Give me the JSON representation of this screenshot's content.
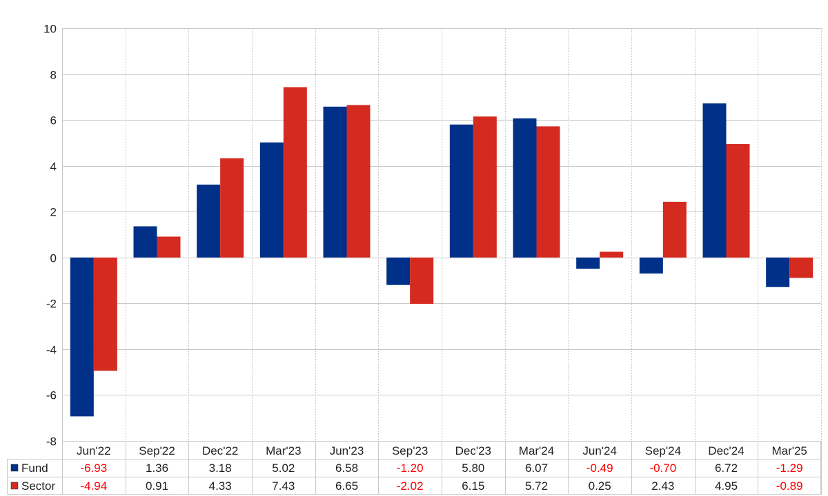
{
  "chart_data": {
    "type": "bar",
    "categories": [
      "Jun'22",
      "Sep'22",
      "Dec'22",
      "Mar'23",
      "Jun'23",
      "Sep'23",
      "Dec'23",
      "Mar'24",
      "Jun'24",
      "Sep'24",
      "Dec'24",
      "Mar'25"
    ],
    "series": [
      {
        "name": "Fund",
        "color": "#003087",
        "values": [
          -6.93,
          1.36,
          3.18,
          5.02,
          6.58,
          -1.2,
          5.8,
          6.07,
          -0.49,
          -0.7,
          6.72,
          -1.29
        ],
        "labels": [
          "-6.93",
          "1.36",
          "3.18",
          "5.02",
          "6.58",
          "-1.20",
          "5.80",
          "6.07",
          "-0.49",
          "-0.70",
          "6.72",
          "-1.29"
        ]
      },
      {
        "name": "Sector",
        "color": "#d42a20",
        "values": [
          -4.94,
          0.91,
          4.33,
          7.43,
          6.65,
          -2.02,
          6.15,
          5.72,
          0.25,
          2.43,
          4.95,
          -0.89
        ],
        "labels": [
          "-4.94",
          "0.91",
          "4.33",
          "7.43",
          "6.65",
          "-2.02",
          "6.15",
          "5.72",
          "0.25",
          "2.43",
          "4.95",
          "-0.89"
        ]
      }
    ],
    "yticks": [
      "10",
      "8",
      "6",
      "4",
      "2",
      "0",
      "-2",
      "-4",
      "-6",
      "-8"
    ],
    "ylim": [
      -8,
      10
    ],
    "grid": true,
    "legend_placement": "data-table-left",
    "colors": {
      "positive_text": "#222222",
      "negative_text": "#ff0000",
      "grid": "#c8c8c8"
    }
  }
}
